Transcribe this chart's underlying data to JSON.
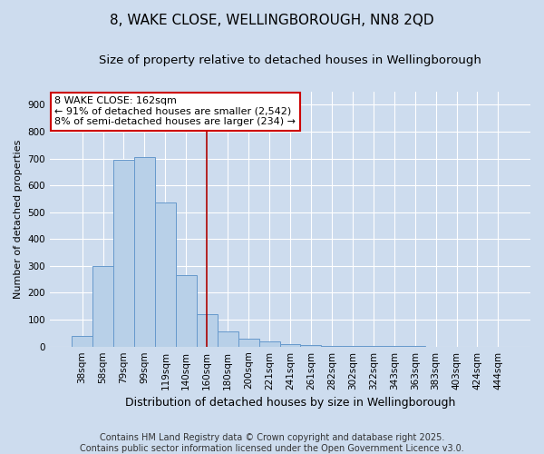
{
  "title_line1": "8, WAKE CLOSE, WELLINGBOROUGH, NN8 2QD",
  "title_line2": "Size of property relative to detached houses in Wellingborough",
  "xlabel": "Distribution of detached houses by size in Wellingborough",
  "ylabel": "Number of detached properties",
  "categories": [
    "38sqm",
    "58sqm",
    "79sqm",
    "99sqm",
    "119sqm",
    "140sqm",
    "160sqm",
    "180sqm",
    "200sqm",
    "221sqm",
    "241sqm",
    "261sqm",
    "282sqm",
    "302sqm",
    "322sqm",
    "343sqm",
    "363sqm",
    "383sqm",
    "403sqm",
    "424sqm",
    "444sqm"
  ],
  "values": [
    40,
    300,
    695,
    705,
    535,
    265,
    120,
    55,
    30,
    20,
    10,
    5,
    3,
    2,
    1,
    1,
    1,
    0,
    0,
    0,
    0
  ],
  "bar_color": "#b8d0e8",
  "bar_edge_color": "#6699cc",
  "vline_x_index": 6,
  "vline_color": "#aa0000",
  "annotation_text": "8 WAKE CLOSE: 162sqm\n← 91% of detached houses are smaller (2,542)\n8% of semi-detached houses are larger (234) →",
  "annotation_box_color": "#cc0000",
  "ylim": [
    0,
    950
  ],
  "yticks": [
    0,
    100,
    200,
    300,
    400,
    500,
    600,
    700,
    800,
    900
  ],
  "background_color": "#cddcee",
  "plot_background": "#cddcee",
  "footer_line1": "Contains HM Land Registry data © Crown copyright and database right 2025.",
  "footer_line2": "Contains public sector information licensed under the Open Government Licence v3.0.",
  "title_fontsize": 11,
  "subtitle_fontsize": 9.5,
  "xlabel_fontsize": 9,
  "ylabel_fontsize": 8,
  "tick_fontsize": 7.5,
  "footer_fontsize": 7
}
